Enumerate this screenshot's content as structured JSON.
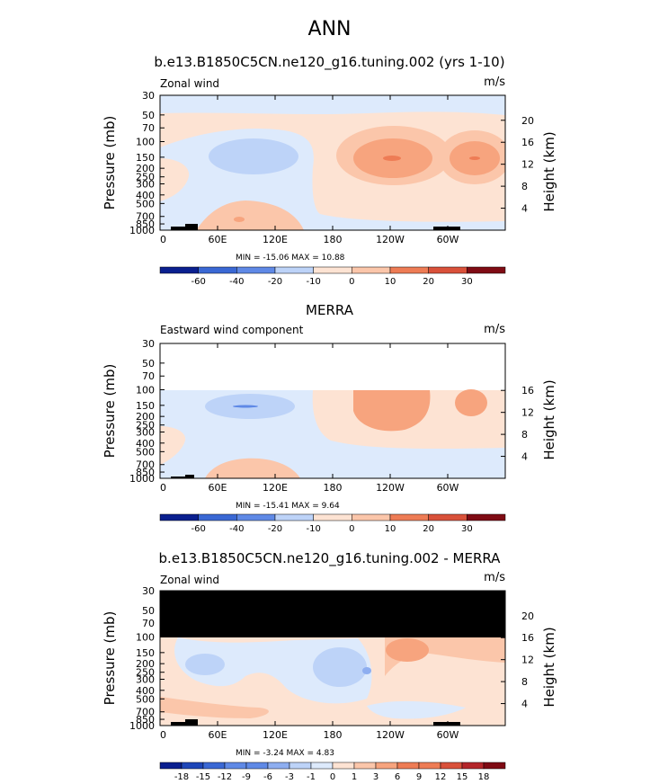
{
  "figure": {
    "title": "ANN"
  },
  "colors": {
    "cb1": [
      "#0a1f8f",
      "#1e46b8",
      "#3a68d4",
      "#5f89e6",
      "#8eaef0",
      "#bdd3f8",
      "#ddeafc",
      "#fde3d3",
      "#fbc6aa",
      "#f7a47e",
      "#ee7c55",
      "#d9513a",
      "#b4262a",
      "#7f0b14"
    ],
    "cb2": [
      "#0a1f8f",
      "#1e46b8",
      "#3a68d4",
      "#5f89e6",
      "#8eaef0",
      "#bdd3f8",
      "#ddeafc",
      "#fde3d3",
      "#fbc6aa",
      "#f7a47e",
      "#ee7c55",
      "#d9513a",
      "#b4262a",
      "#7f0b14"
    ],
    "cb3": [
      "#0a1f8f",
      "#1e46b8",
      "#3a68d4",
      "#5f89e6",
      "#8eaef0",
      "#bdd3f8",
      "#ddeafc",
      "#fde3d3",
      "#fbc6aa",
      "#f7a47e",
      "#ee7c55",
      "#d9513a",
      "#b4262a",
      "#7f0b14"
    ]
  },
  "chart_data": [
    {
      "type": "heatmap",
      "title": "b.e13.B1850C5CN.ne120_g16.tuning.002 (yrs 1-10)",
      "left_label": "Zonal wind",
      "units": "m/s",
      "ylabel": "Pressure (mb)",
      "ylabel_right": "Height (km)",
      "yticks": [
        "30",
        "50",
        "70",
        "100",
        "150",
        "200",
        "250",
        "300",
        "400",
        "500",
        "700",
        "850",
        "1000"
      ],
      "yticks_right": [
        "20",
        "16",
        "12",
        "8",
        "4"
      ],
      "xticks": [
        "0",
        "60E",
        "120E",
        "180",
        "120W",
        "60W"
      ],
      "min_max": "MIN = -15.06   MAX =  10.88",
      "colorbar_labels": [
        "-60",
        "-40",
        "-20",
        "-10",
        "0",
        "10",
        "20",
        "30"
      ]
    },
    {
      "type": "heatmap",
      "title": "MERRA",
      "left_label": "Eastward wind component",
      "units": "m/s",
      "ylabel": "Pressure (mb)",
      "ylabel_right": "Height (km)",
      "yticks": [
        "30",
        "50",
        "70",
        "100",
        "150",
        "200",
        "250",
        "300",
        "400",
        "500",
        "700",
        "850",
        "1000"
      ],
      "yticks_right": [
        "16",
        "12",
        "8",
        "4"
      ],
      "xticks": [
        "0",
        "60E",
        "120E",
        "180",
        "120W",
        "60W"
      ],
      "min_max": "MIN = -15.41   MAX =   9.64",
      "colorbar_labels": [
        "-60",
        "-40",
        "-20",
        "-10",
        "0",
        "10",
        "20",
        "30"
      ]
    },
    {
      "type": "heatmap",
      "title": "b.e13.B1850C5CN.ne120_g16.tuning.002 - MERRA",
      "left_label": "Zonal wind",
      "units": "m/s",
      "ylabel": "Pressure (mb)",
      "ylabel_right": "Height (km)",
      "yticks": [
        "30",
        "50",
        "70",
        "100",
        "150",
        "200",
        "250",
        "300",
        "400",
        "500",
        "700",
        "850",
        "1000"
      ],
      "yticks_right": [
        "20",
        "16",
        "12",
        "8",
        "4"
      ],
      "xticks": [
        "0",
        "60E",
        "120E",
        "180",
        "120W",
        "60W"
      ],
      "min_max": "MIN =  -3.24   MAX =   4.83",
      "colorbar_labels": [
        "-18",
        "-15",
        "-12",
        "-9",
        "-6",
        "-3",
        "-1",
        "0",
        "1",
        "3",
        "6",
        "9",
        "12",
        "15",
        "18"
      ]
    }
  ]
}
